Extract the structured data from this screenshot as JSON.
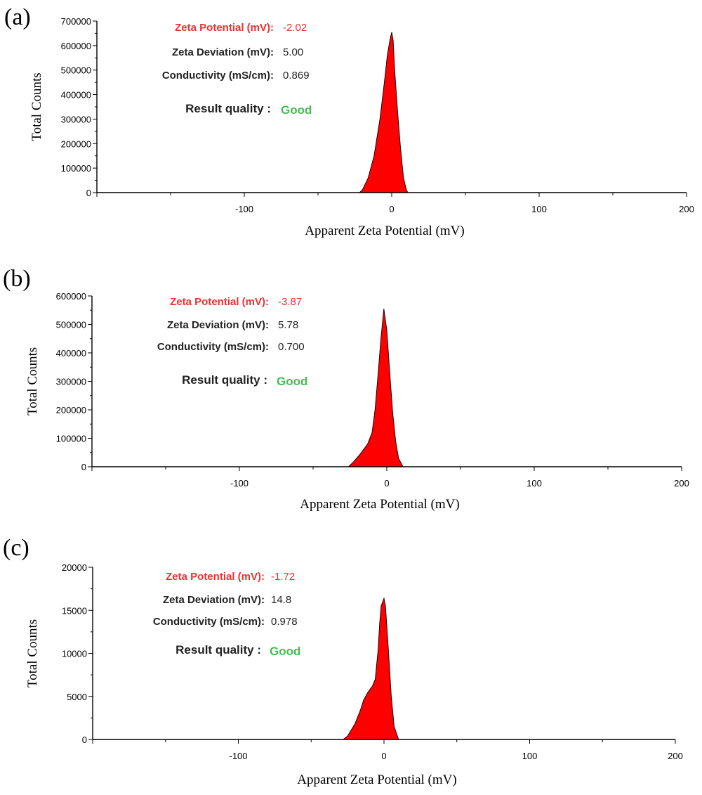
{
  "colors": {
    "peak": "#ff0000",
    "highlight": "#ee3030",
    "good": "#44bb55",
    "text": "#222222"
  },
  "chart_data": [
    {
      "type": "area",
      "panel_label": "(a)",
      "xlabel": "Apparent Zeta Potential (mV)",
      "ylabel": "Total Counts",
      "xlim": [
        -200,
        200
      ],
      "ylim": [
        0,
        700000
      ],
      "xticks": [
        -100,
        0,
        100,
        200
      ],
      "yticks": [
        0,
        100000,
        200000,
        300000,
        400000,
        500000,
        600000,
        700000
      ],
      "x": [
        -22,
        -20,
        -16,
        -12,
        -8,
        -5,
        -3,
        -1,
        0,
        1,
        2,
        4,
        6,
        8,
        10,
        11
      ],
      "y": [
        0,
        10000,
        60000,
        150000,
        300000,
        450000,
        560000,
        630000,
        655000,
        620000,
        500000,
        330000,
        180000,
        60000,
        10000,
        0
      ],
      "info": {
        "zeta_potential_label": "Zeta Potential (mV):",
        "zeta_potential_value": "-2.02",
        "zeta_deviation_label": "Zeta Deviation (mV):",
        "zeta_deviation_value": "5.00",
        "conductivity_label": "Conductivity (mS/cm):",
        "conductivity_value": "0.869",
        "quality_label": "Result quality :",
        "quality_value": "Good"
      }
    },
    {
      "type": "area",
      "panel_label": "(b)",
      "xlabel": "Apparent Zeta Potential (mV)",
      "ylabel": "Total Counts",
      "xlim": [
        -200,
        200
      ],
      "ylim": [
        0,
        600000
      ],
      "xticks": [
        -100,
        0,
        100,
        200
      ],
      "yticks": [
        0,
        100000,
        200000,
        300000,
        400000,
        500000,
        600000
      ],
      "x": [
        -26,
        -23,
        -18,
        -13,
        -10,
        -8,
        -6,
        -4,
        -2,
        0,
        2,
        4,
        6,
        8,
        11
      ],
      "y": [
        0,
        15000,
        45000,
        80000,
        120000,
        200000,
        320000,
        450000,
        555000,
        480000,
        330000,
        190000,
        90000,
        30000,
        0
      ],
      "info": {
        "zeta_potential_label": "Zeta Potential (mV):",
        "zeta_potential_value": "-3.87",
        "zeta_deviation_label": "Zeta Deviation (mV):",
        "zeta_deviation_value": "5.78",
        "conductivity_label": "Conductivity (mS/cm):",
        "conductivity_value": "0.700",
        "quality_label": "Result quality :",
        "quality_value": "Good"
      }
    },
    {
      "type": "area",
      "panel_label": "(c)",
      "xlabel": "Apparent Zeta Potential (mV)",
      "ylabel": "Total Counts",
      "xlim": [
        -200,
        200
      ],
      "ylim": [
        0,
        20000
      ],
      "xticks": [
        -100,
        0,
        100,
        200
      ],
      "yticks": [
        0,
        5000,
        10000,
        15000,
        20000
      ],
      "x": [
        -28,
        -25,
        -20,
        -16,
        -14,
        -11,
        -8,
        -6,
        -4,
        -3,
        -2,
        0,
        1,
        3,
        5,
        7,
        10
      ],
      "y": [
        0,
        400,
        1800,
        3500,
        4600,
        5500,
        6200,
        7000,
        10500,
        13500,
        15500,
        16400,
        15500,
        10500,
        5000,
        1500,
        0
      ],
      "info": {
        "zeta_potential_label": "Zeta Potential (mV):",
        "zeta_potential_value": "-1.72",
        "zeta_deviation_label": "Zeta Deviation (mV):",
        "zeta_deviation_value": "14.8",
        "conductivity_label": "Conductivity (mS/cm):",
        "conductivity_value": "0.978",
        "quality_label": "Result quality :",
        "quality_value": "Good"
      }
    }
  ]
}
